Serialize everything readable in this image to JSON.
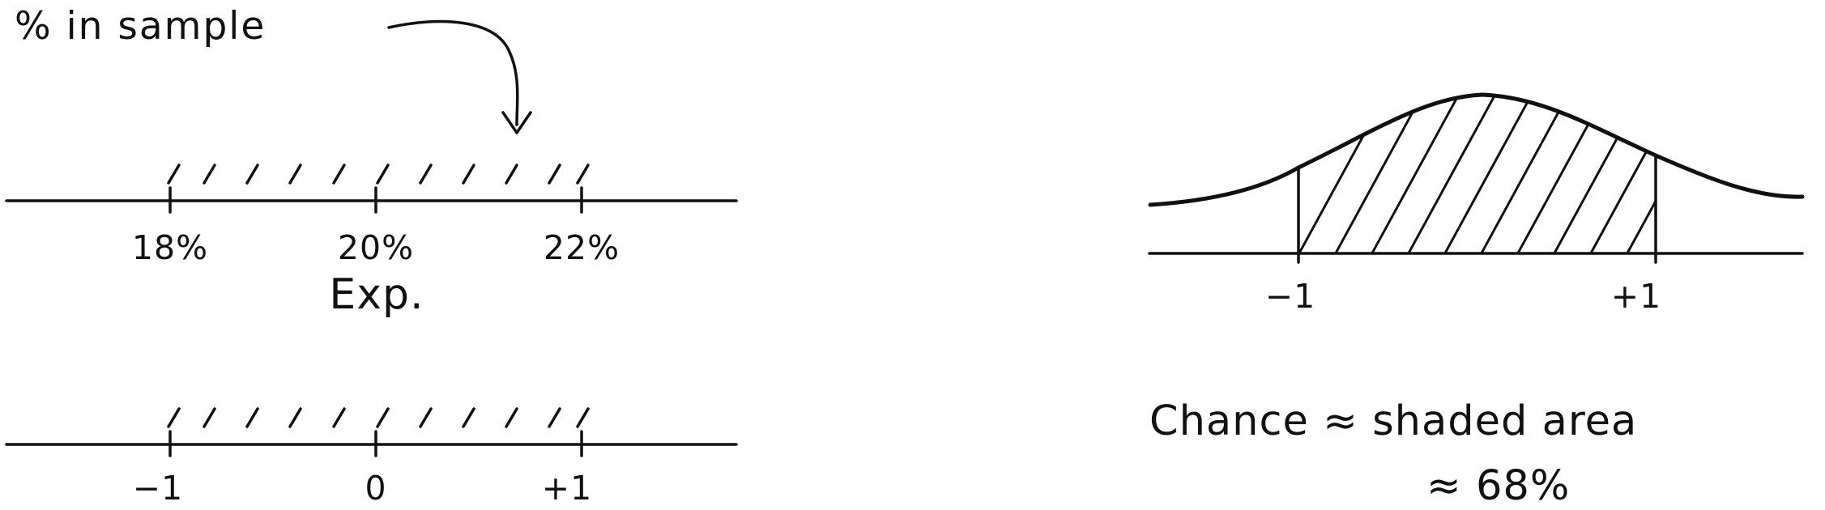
{
  "left_panel": {
    "annotation": "% in sample",
    "top_axis_ticks": [
      "18%",
      "20%",
      "22%"
    ],
    "expected_label": "Exp.",
    "bottom_axis_ticks": [
      "−1",
      "0",
      "+1"
    ]
  },
  "right_panel": {
    "curve_ticks": [
      "−1",
      "+1"
    ],
    "caption_line_1": "Chance ≈ shaded area",
    "caption_line_2": "≈ 68%"
  },
  "colors": {
    "ink": "#111111",
    "paper": "#ffffff"
  },
  "icons": [
    "curved-arrow-icon"
  ]
}
